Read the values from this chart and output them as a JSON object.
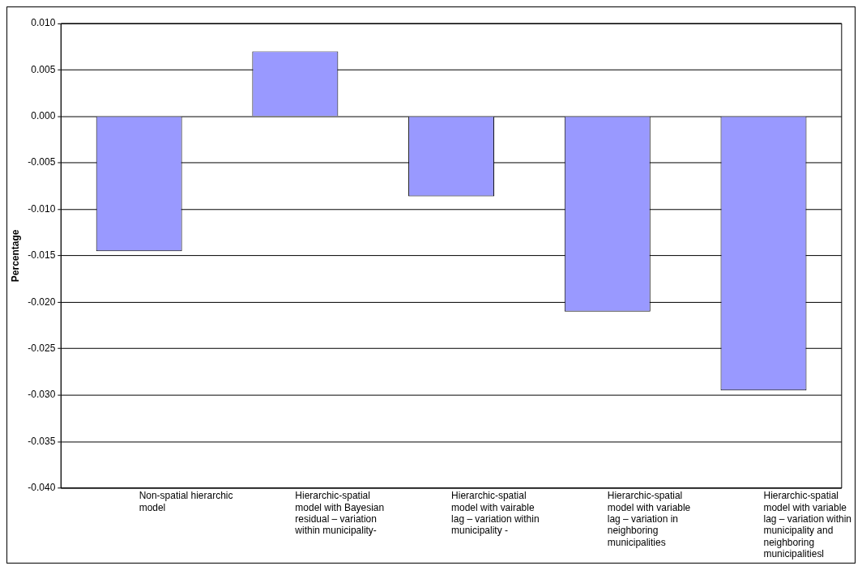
{
  "chart_data": {
    "type": "bar",
    "ylabel": "Percentage",
    "categories": [
      "Non-spatial hierarchic model",
      "Hierarchic-spatial model with Bayesian residual – variation within municipality-",
      "Hierarchic-spatial model with vairable lag – variation within municipality -",
      "Hierarchic-spatial model with variable lag – variation in neighboring municipalities",
      "Hierarchic-spatial model with variable lag – variation within municipality and neighboring municipalitiesl"
    ],
    "values": [
      -0.0145,
      0.007,
      -0.0086,
      -0.021,
      -0.0295
    ],
    "color": "#9999ff",
    "ylim": [
      -0.04,
      0.01
    ],
    "yticks": [
      {
        "value": -0.04,
        "label": "-0.040"
      },
      {
        "value": -0.035,
        "label": "-0.035"
      },
      {
        "value": -0.03,
        "label": "-0.030"
      },
      {
        "value": -0.025,
        "label": "-0.025"
      },
      {
        "value": -0.02,
        "label": "-0.020"
      },
      {
        "value": -0.015,
        "label": "-0.015"
      },
      {
        "value": -0.01,
        "label": "-0.010"
      },
      {
        "value": -0.005,
        "label": "-0.005"
      },
      {
        "value": 0,
        "label": "0.000"
      },
      {
        "value": 0.005,
        "label": "0.005"
      },
      {
        "value": 0.01,
        "label": "0.010"
      }
    ],
    "grid": "y",
    "legend": false
  }
}
